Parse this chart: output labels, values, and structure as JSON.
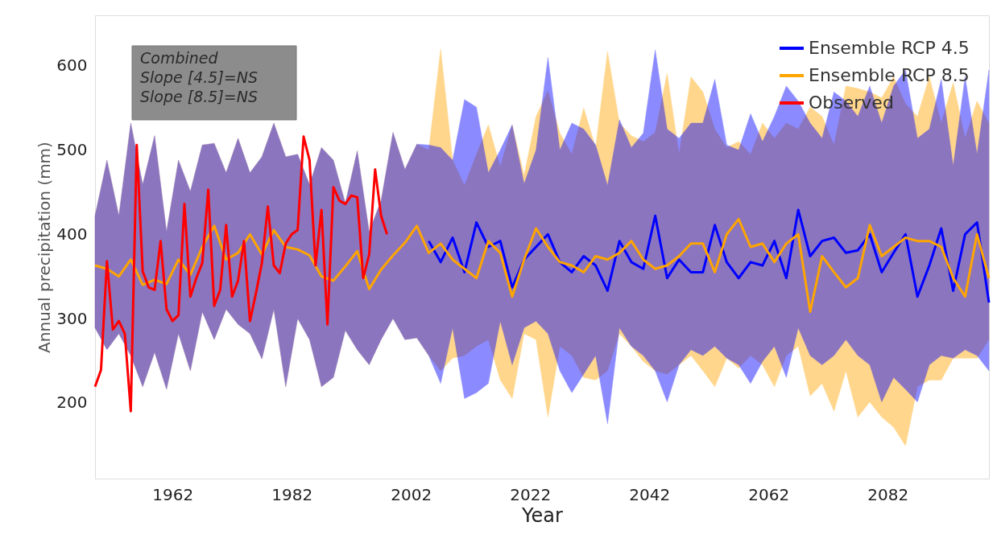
{
  "chart_data": {
    "type": "line",
    "xlabel": "Year",
    "ylabel": "Annual precipitation (mm)",
    "xlim": [
      1949,
      2099
    ],
    "ylim": [
      110,
      660
    ],
    "xticks": [
      1962,
      1982,
      2002,
      2022,
      2042,
      2062,
      2082
    ],
    "yticks": [
      200,
      300,
      400,
      500,
      600
    ],
    "grid": false,
    "legend": "top right",
    "annotations": [
      "Combined\nSlope [4.5]=NS\nSlope [8.5]=NS"
    ],
    "series": [
      {
        "name": "Ensemble RCP 4.5",
        "color": "#0000ff",
        "x": [
          1949,
          1951,
          1953,
          1955,
          1957,
          1959,
          1961,
          1963,
          1965,
          1967,
          1969,
          1971,
          1973,
          1975,
          1977,
          1979,
          1981,
          1983,
          1985,
          1987,
          1989,
          1991,
          1993,
          1995,
          1997,
          1999,
          2001,
          2003,
          2005,
          2007,
          2009,
          2011,
          2013,
          2015,
          2017,
          2019,
          2021,
          2023,
          2025,
          2027,
          2029,
          2031,
          2033,
          2035,
          2037,
          2039,
          2041,
          2043,
          2045,
          2047,
          2049,
          2051,
          2053,
          2055,
          2057,
          2059,
          2061,
          2063,
          2065,
          2067,
          2069,
          2071,
          2073,
          2075,
          2077,
          2079,
          2081,
          2083,
          2085,
          2087,
          2089,
          2091,
          2093,
          2095,
          2097,
          2099
        ],
        "values": [
          null,
          null,
          null,
          null,
          null,
          null,
          null,
          null,
          null,
          null,
          null,
          null,
          null,
          null,
          null,
          null,
          null,
          null,
          null,
          null,
          null,
          null,
          null,
          null,
          null,
          null,
          null,
          null,
          392,
          367,
          396,
          355,
          414,
          385,
          392,
          337,
          370,
          385,
          400,
          367,
          355,
          374,
          363,
          333,
          392,
          367,
          359,
          422,
          348,
          370,
          355,
          355,
          411,
          367,
          348,
          367,
          363,
          392,
          348,
          429,
          374,
          392,
          396,
          378,
          381,
          400,
          355,
          378,
          400,
          326,
          363,
          407,
          333,
          400,
          414,
          319
        ],
        "upper": [
          422,
          488,
          422,
          532,
          459,
          517,
          403,
          488,
          451,
          506,
          508,
          473,
          514,
          473,
          492,
          532,
          492,
          495,
          459,
          503,
          488,
          437,
          499,
          403,
          440,
          521,
          477,
          507,
          506,
          503,
          488,
          560,
          551,
          473,
          500,
          530,
          460,
          500,
          610,
          500,
          532,
          525,
          506,
          458,
          536,
          503,
          520,
          619,
          525,
          514,
          532,
          532,
          584,
          506,
          500,
          543,
          510,
          540,
          576,
          558,
          532,
          514,
          569,
          558,
          540,
          576,
          532,
          576,
          595,
          514,
          525,
          584,
          481,
          587,
          495,
          595
        ],
        "lower": [
          289,
          263,
          282,
          256,
          219,
          260,
          216,
          282,
          238,
          308,
          275,
          311,
          293,
          282,
          252,
          311,
          219,
          300,
          275,
          219,
          230,
          286,
          263,
          245,
          275,
          300,
          275,
          277,
          256,
          223,
          289,
          205,
          212,
          223,
          297,
          245,
          289,
          297,
          282,
          238,
          212,
          234,
          256,
          175,
          289,
          267,
          256,
          238,
          201,
          245,
          263,
          256,
          267,
          253,
          245,
          223,
          249,
          267,
          230,
          289,
          256,
          245,
          256,
          275,
          256,
          245,
          201,
          230,
          216,
          201,
          245,
          256,
          253,
          263,
          256,
          238
        ]
      },
      {
        "name": "Ensemble RCP 8.5",
        "color": "#ffa500",
        "x": [
          1949,
          1951,
          1953,
          1955,
          1957,
          1959,
          1961,
          1963,
          1965,
          1967,
          1969,
          1971,
          1973,
          1975,
          1977,
          1979,
          1981,
          1983,
          1985,
          1987,
          1989,
          1991,
          1993,
          1995,
          1997,
          1999,
          2001,
          2003,
          2005,
          2007,
          2009,
          2011,
          2013,
          2015,
          2017,
          2019,
          2021,
          2023,
          2025,
          2027,
          2029,
          2031,
          2033,
          2035,
          2037,
          2039,
          2041,
          2043,
          2045,
          2047,
          2049,
          2051,
          2053,
          2055,
          2057,
          2059,
          2061,
          2063,
          2065,
          2067,
          2069,
          2071,
          2073,
          2075,
          2077,
          2079,
          2081,
          2083,
          2085,
          2087,
          2089,
          2091,
          2093,
          2095,
          2097,
          2099
        ],
        "values": [
          363,
          359,
          350,
          370,
          340,
          346,
          341,
          370,
          352,
          385,
          410,
          370,
          378,
          400,
          376,
          405,
          385,
          382,
          375,
          350,
          345,
          362,
          380,
          335,
          358,
          375,
          390,
          410,
          378,
          389,
          370,
          359,
          348,
          392,
          378,
          326,
          370,
          407,
          385,
          367,
          363,
          355,
          374,
          370,
          378,
          392,
          370,
          359,
          363,
          374,
          389,
          389,
          355,
          400,
          418,
          385,
          389,
          367,
          389,
          400,
          308,
          374,
          355,
          337,
          348,
          411,
          374,
          385,
          396,
          392,
          392,
          385,
          348,
          326,
          400,
          348
        ],
        "upper": [
          422,
          488,
          422,
          532,
          459,
          517,
          403,
          488,
          451,
          506,
          508,
          473,
          514,
          473,
          492,
          532,
          492,
          495,
          459,
          503,
          488,
          437,
          499,
          403,
          440,
          521,
          477,
          507,
          500,
          620,
          488,
          458,
          495,
          530,
          480,
          530,
          470,
          540,
          570,
          520,
          495,
          550,
          503,
          617,
          532,
          517,
          510,
          521,
          591,
          495,
          587,
          569,
          525,
          503,
          510,
          495,
          532,
          514,
          532,
          525,
          551,
          540,
          506,
          576,
          573,
          569,
          562,
          587,
          555,
          540,
          587,
          532,
          580,
          514,
          558,
          532
        ],
        "lower": [
          289,
          263,
          282,
          256,
          219,
          260,
          216,
          282,
          238,
          308,
          275,
          311,
          293,
          282,
          252,
          311,
          219,
          300,
          275,
          219,
          230,
          286,
          263,
          245,
          275,
          300,
          275,
          277,
          256,
          238,
          253,
          256,
          267,
          275,
          227,
          205,
          282,
          275,
          183,
          267,
          256,
          230,
          227,
          238,
          282,
          267,
          249,
          238,
          234,
          245,
          256,
          238,
          219,
          253,
          241,
          256,
          245,
          219,
          256,
          267,
          208,
          223,
          190,
          238,
          183,
          201,
          183,
          171,
          149,
          219,
          227,
          227,
          253,
          253,
          253,
          275
        ]
      },
      {
        "name": "Observed",
        "color": "#ff0000",
        "x": [
          1949,
          1950,
          1951,
          1952,
          1953,
          1954,
          1955,
          1956,
          1957,
          1958,
          1959,
          1960,
          1961,
          1962,
          1963,
          1964,
          1965,
          1966,
          1967,
          1968,
          1969,
          1970,
          1971,
          1972,
          1973,
          1974,
          1975,
          1976,
          1977,
          1978,
          1979,
          1980,
          1981,
          1982,
          1983,
          1984,
          1985,
          1986,
          1987,
          1988,
          1989,
          1990,
          1991,
          1992,
          1993,
          1994,
          1995,
          1996,
          1997,
          1998
        ],
        "values": [
          219,
          239,
          368,
          287,
          297,
          282,
          190,
          506,
          356,
          337,
          334,
          392,
          311,
          297,
          304,
          436,
          326,
          348,
          366,
          453,
          315,
          334,
          411,
          326,
          345,
          392,
          297,
          330,
          366,
          433,
          363,
          354,
          389,
          400,
          405,
          516,
          488,
          363,
          429,
          293,
          456,
          440,
          436,
          446,
          444,
          348,
          376,
          477,
          422,
          400
        ]
      }
    ]
  }
}
